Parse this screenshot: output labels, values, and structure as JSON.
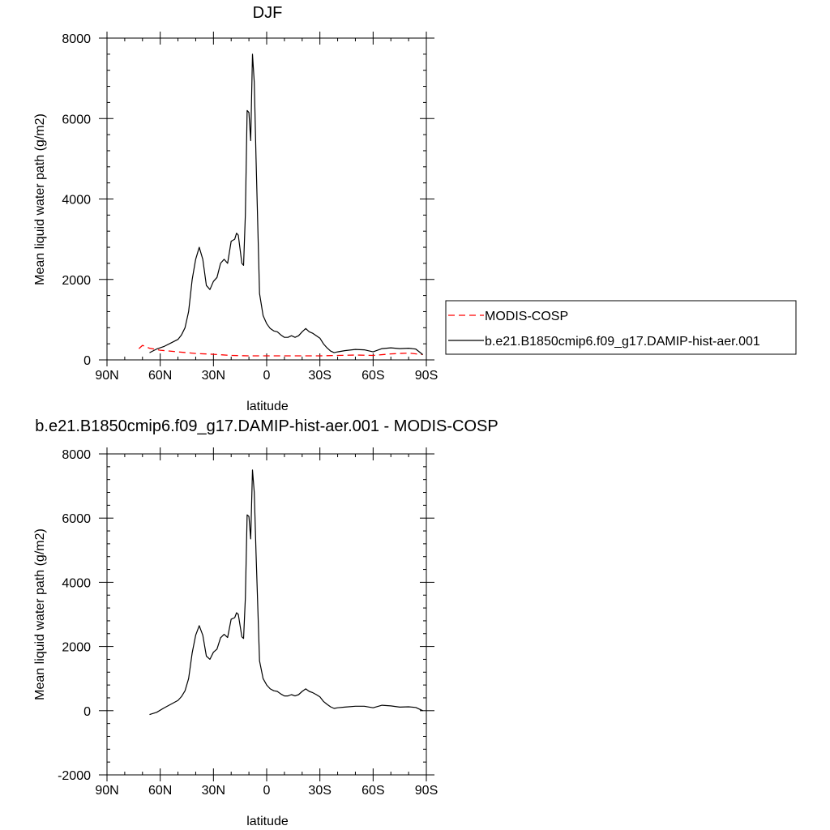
{
  "chart_data": [
    {
      "type": "line",
      "title": "DJF",
      "xlabel": "latitude",
      "ylabel": "Mean liquid water path (g/m2)",
      "x_ticks": [
        "90N",
        "60N",
        "30N",
        "0",
        "30S",
        "60S",
        "90S"
      ],
      "y_ticks": [
        "0",
        "2000",
        "4000",
        "6000",
        "8000"
      ],
      "xlim": [
        90,
        -90
      ],
      "ylim": [
        0,
        8000
      ],
      "series": [
        {
          "name": "MODIS-COSP",
          "color": "#ff0000",
          "style": "dashed",
          "x": [
            72,
            70,
            66,
            60,
            50,
            40,
            30,
            20,
            10,
            0,
            -10,
            -20,
            -30,
            -40,
            -50,
            -60,
            -70,
            -80,
            -88
          ],
          "y": [
            280,
            360,
            290,
            240,
            200,
            160,
            140,
            110,
            100,
            100,
            100,
            100,
            100,
            110,
            120,
            110,
            150,
            170,
            130
          ]
        },
        {
          "name": "b.e21.B1850cmip6.f09_g17.DAMIP-hist-aer.001",
          "color": "#000000",
          "style": "solid",
          "x": [
            66,
            62,
            58,
            54,
            50,
            48,
            46,
            44,
            42,
            40,
            38,
            36,
            34,
            32,
            30,
            28,
            26,
            24,
            22,
            20,
            18,
            17,
            16,
            14,
            13,
            12,
            11,
            10,
            9,
            8,
            7,
            6,
            4,
            2,
            0,
            -2,
            -4,
            -6,
            -8,
            -10,
            -12,
            -14,
            -16,
            -18,
            -20,
            -22,
            -24,
            -26,
            -28,
            -30,
            -32,
            -34,
            -36,
            -38,
            -40,
            -44,
            -50,
            -55,
            -60,
            -65,
            -70,
            -75,
            -80,
            -84,
            -88
          ],
          "y": [
            180,
            270,
            330,
            420,
            510,
            620,
            800,
            1200,
            2000,
            2500,
            2800,
            2500,
            1850,
            1750,
            1950,
            2050,
            2400,
            2500,
            2400,
            2950,
            3000,
            3150,
            3100,
            2400,
            2350,
            3600,
            6200,
            6150,
            5450,
            7600,
            6900,
            5000,
            1650,
            1100,
            900,
            780,
            720,
            700,
            620,
            560,
            560,
            600,
            560,
            600,
            700,
            780,
            700,
            660,
            600,
            540,
            400,
            300,
            220,
            180,
            200,
            230,
            260,
            250,
            200,
            280,
            300,
            280,
            290,
            270,
            130
          ]
        }
      ],
      "legend": "right"
    },
    {
      "type": "line",
      "title": "b.e21.B1850cmip6.f09_g17.DAMIP-hist-aer.001 - MODIS-COSP",
      "xlabel": "latitude",
      "ylabel": "Mean liquid water path (g/m2)",
      "x_ticks": [
        "90N",
        "60N",
        "30N",
        "0",
        "30S",
        "60S",
        "90S"
      ],
      "y_ticks": [
        "-2000",
        "0",
        "2000",
        "4000",
        "6000",
        "8000"
      ],
      "xlim": [
        90,
        -90
      ],
      "ylim": [
        -2000,
        8000
      ],
      "series": [
        {
          "color": "#000000",
          "style": "solid",
          "x": [
            66,
            62,
            58,
            54,
            50,
            48,
            46,
            44,
            42,
            40,
            38,
            36,
            34,
            32,
            30,
            28,
            26,
            24,
            22,
            20,
            18,
            17,
            16,
            14,
            13,
            12,
            11,
            10,
            9,
            8,
            7,
            6,
            4,
            2,
            0,
            -2,
            -4,
            -6,
            -8,
            -10,
            -12,
            -14,
            -16,
            -18,
            -20,
            -22,
            -24,
            -26,
            -28,
            -30,
            -32,
            -34,
            -36,
            -38,
            -40,
            -44,
            -50,
            -55,
            -60,
            -65,
            -70,
            -75,
            -80,
            -84,
            -88
          ],
          "y": [
            -120,
            -50,
            80,
            200,
            320,
            440,
            620,
            1000,
            1800,
            2350,
            2650,
            2350,
            1700,
            1600,
            1820,
            1920,
            2270,
            2380,
            2280,
            2850,
            2900,
            3050,
            3000,
            2300,
            2250,
            3500,
            6100,
            6050,
            5350,
            7500,
            6800,
            4900,
            1550,
            1000,
            800,
            680,
            620,
            600,
            520,
            460,
            460,
            500,
            460,
            500,
            600,
            680,
            600,
            560,
            500,
            430,
            290,
            200,
            120,
            70,
            90,
            110,
            140,
            140,
            90,
            170,
            150,
            110,
            120,
            100,
            0
          ]
        }
      ]
    }
  ]
}
